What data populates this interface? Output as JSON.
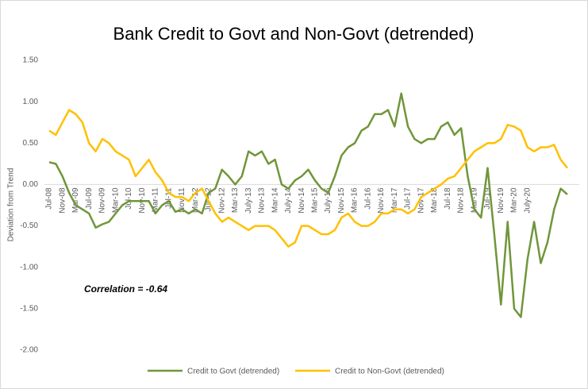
{
  "chart_data": {
    "type": "line",
    "title": "Bank Credit to Govt and Non-Govt (detrended)",
    "y_label": "Deviation from Trend",
    "annotation": "Correlation = -0.64",
    "categories": [
      "Jul-08",
      null,
      "Nov-08",
      null,
      "Mar-09",
      null,
      "Jul-09",
      null,
      "Nov-09",
      null,
      "Mar-10",
      null,
      "Jul-10",
      null,
      "Nov-10",
      null,
      "Mar-11",
      null,
      "Jul-11",
      null,
      "Nov-11",
      null,
      "Mar-12",
      null,
      "Jul -12",
      null,
      "Nov-12",
      null,
      "Mar-13",
      null,
      "July-13",
      null,
      "Nov-13",
      null,
      "Mar-14",
      null,
      "July-14",
      null,
      "Nov-14",
      null,
      "Mar-15",
      null,
      "July-15",
      null,
      "Nov-15",
      null,
      "Mar-16",
      null,
      "Jul-16",
      null,
      "Nov-16",
      null,
      "Mar-17",
      null,
      "Jul-17",
      null,
      "Nov-17",
      null,
      "Mar-18",
      null,
      "Jul-18",
      null,
      "Nov-18",
      null,
      "Mar-19",
      null,
      "Jul-19",
      null,
      "Nov-19",
      null,
      "Mar-20",
      null,
      "July-20",
      null,
      null,
      null,
      null,
      null,
      null
    ],
    "series": [
      {
        "name": "Credit to Govt (detrended)",
        "color": "#70963a",
        "values": [
          0.27,
          0.25,
          0.1,
          -0.1,
          -0.25,
          -0.3,
          -0.35,
          -0.52,
          -0.48,
          -0.45,
          -0.35,
          -0.25,
          -0.2,
          -0.2,
          -0.2,
          -0.2,
          -0.35,
          -0.25,
          -0.2,
          -0.33,
          -0.3,
          -0.35,
          -0.3,
          -0.35,
          -0.1,
          -0.05,
          0.18,
          0.1,
          0.0,
          0.1,
          0.4,
          0.35,
          0.4,
          0.25,
          0.3,
          0.0,
          -0.05,
          0.05,
          0.1,
          0.18,
          0.05,
          -0.05,
          -0.1,
          0.1,
          0.35,
          0.45,
          0.5,
          0.65,
          0.7,
          0.85,
          0.85,
          0.9,
          0.7,
          1.1,
          0.7,
          0.55,
          0.5,
          0.55,
          0.55,
          0.7,
          0.75,
          0.6,
          0.68,
          0.1,
          -0.3,
          -0.4,
          0.2,
          -0.6,
          -1.45,
          -0.45,
          -1.5,
          -1.6,
          -0.9,
          -0.45,
          -0.95,
          -0.7,
          -0.3,
          -0.05,
          -0.12
        ]
      },
      {
        "name": "Credit to Non-Govt (detrended)",
        "color": "#ffc000",
        "values": [
          0.65,
          0.6,
          0.75,
          0.9,
          0.85,
          0.75,
          0.5,
          0.4,
          0.55,
          0.5,
          0.4,
          0.35,
          0.3,
          0.1,
          0.2,
          0.3,
          0.15,
          0.05,
          -0.1,
          -0.15,
          -0.15,
          -0.2,
          -0.1,
          -0.05,
          -0.2,
          -0.35,
          -0.45,
          -0.4,
          -0.45,
          -0.5,
          -0.55,
          -0.5,
          -0.5,
          -0.5,
          -0.55,
          -0.65,
          -0.75,
          -0.7,
          -0.5,
          -0.5,
          -0.55,
          -0.6,
          -0.6,
          -0.55,
          -0.4,
          -0.35,
          -0.45,
          -0.5,
          -0.5,
          -0.45,
          -0.35,
          -0.35,
          -0.3,
          -0.3,
          -0.35,
          -0.3,
          -0.15,
          -0.1,
          -0.05,
          0.0,
          0.07,
          0.1,
          0.2,
          0.3,
          0.4,
          0.45,
          0.5,
          0.5,
          0.55,
          0.72,
          0.7,
          0.65,
          0.45,
          0.4,
          0.45,
          0.45,
          0.48,
          0.3,
          0.2
        ]
      }
    ],
    "ylim": [
      -2,
      1.5
    ],
    "yticks": [
      {
        "value": 1.5,
        "label": "1.50"
      },
      {
        "value": 1,
        "label": "1.00"
      },
      {
        "value": 0.5,
        "label": "0.50"
      },
      {
        "value": 0,
        "label": "0.00"
      },
      {
        "value": -0.5,
        "label": "-0.50"
      },
      {
        "value": -1,
        "label": "-1.00"
      },
      {
        "value": -1.5,
        "label": "-1.50"
      },
      {
        "value": -2,
        "label": "-2.00"
      }
    ],
    "grid": false,
    "legend": "bottom"
  }
}
